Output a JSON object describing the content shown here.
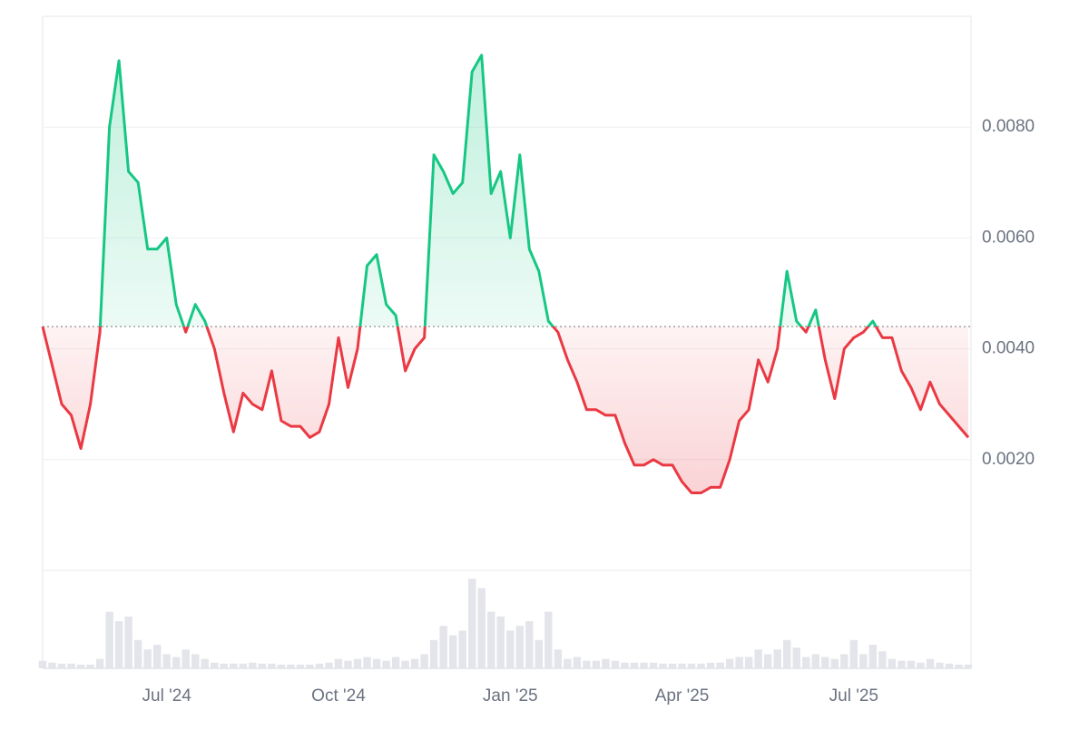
{
  "chart_data": {
    "type": "line",
    "categories": [
      null,
      null,
      null,
      null,
      null,
      null,
      null,
      null,
      null,
      null,
      null,
      null,
      null,
      "Jul '24",
      null,
      null,
      null,
      null,
      null,
      null,
      null,
      null,
      null,
      null,
      null,
      null,
      null,
      null,
      null,
      null,
      null,
      "Oct '24",
      null,
      null,
      null,
      null,
      null,
      null,
      null,
      null,
      null,
      null,
      null,
      null,
      null,
      null,
      null,
      null,
      null,
      "Jan '25",
      null,
      null,
      null,
      null,
      null,
      null,
      null,
      null,
      null,
      null,
      null,
      null,
      null,
      null,
      null,
      null,
      null,
      "Apr '25",
      null,
      null,
      null,
      null,
      null,
      null,
      null,
      null,
      null,
      null,
      null,
      null,
      null,
      null,
      null,
      null,
      null,
      "Jul '25",
      null,
      null,
      null,
      null,
      null,
      null,
      null,
      null,
      null,
      null,
      null,
      null
    ],
    "values": [
      0.0044,
      0.0037,
      0.003,
      0.0028,
      0.0022,
      0.003,
      0.0043,
      0.008,
      0.0092,
      0.0072,
      0.007,
      0.0058,
      0.0058,
      0.006,
      0.0048,
      0.0043,
      0.0048,
      0.0045,
      0.004,
      0.0032,
      0.0025,
      0.0032,
      0.003,
      0.0029,
      0.0036,
      0.0027,
      0.0026,
      0.0026,
      0.0024,
      0.0025,
      0.003,
      0.0042,
      0.0033,
      0.004,
      0.0055,
      0.0057,
      0.0048,
      0.0046,
      0.0036,
      0.004,
      0.0042,
      0.0075,
      0.0072,
      0.0068,
      0.007,
      0.009,
      0.0093,
      0.0068,
      0.0072,
      0.006,
      0.0075,
      0.0058,
      0.0054,
      0.0045,
      0.0043,
      0.0038,
      0.0034,
      0.0029,
      0.0029,
      0.0028,
      0.0028,
      0.0023,
      0.0019,
      0.0019,
      0.002,
      0.0019,
      0.0019,
      0.0016,
      0.0014,
      0.0014,
      0.0015,
      0.0015,
      0.002,
      0.0027,
      0.0029,
      0.0038,
      0.0034,
      0.004,
      0.0054,
      0.0045,
      0.0043,
      0.0047,
      0.0038,
      0.0031,
      0.004,
      0.0042,
      0.0043,
      0.0045,
      0.0042,
      0.0042,
      0.0036,
      0.0033,
      0.0029,
      0.0034,
      0.003,
      0.0028,
      0.0026,
      0.0024
    ],
    "baseline": 0.0044,
    "colors": {
      "up": "#16c784",
      "down": "#ea3943"
    },
    "ylim": [
      0,
      0.01
    ],
    "yticks": [
      {
        "value": 0.002,
        "label": "0.0020"
      },
      {
        "value": 0.004,
        "label": "0.0040"
      },
      {
        "value": 0.006,
        "label": "0.0060"
      },
      {
        "value": 0.008,
        "label": "0.0080"
      }
    ],
    "grid": true,
    "volume": {
      "color": "#e3e5ea",
      "ylim": [
        0,
        100
      ],
      "values": [
        8,
        6,
        5,
        5,
        4,
        4,
        10,
        60,
        50,
        55,
        30,
        20,
        25,
        15,
        12,
        20,
        15,
        10,
        6,
        5,
        5,
        5,
        6,
        5,
        5,
        4,
        4,
        4,
        4,
        5,
        6,
        10,
        8,
        10,
        12,
        10,
        8,
        12,
        8,
        10,
        15,
        30,
        45,
        35,
        40,
        95,
        85,
        60,
        55,
        40,
        45,
        50,
        30,
        60,
        20,
        10,
        12,
        8,
        8,
        10,
        8,
        6,
        6,
        6,
        6,
        5,
        5,
        5,
        5,
        5,
        6,
        6,
        10,
        12,
        12,
        20,
        15,
        20,
        30,
        22,
        12,
        15,
        12,
        10,
        15,
        30,
        15,
        25,
        18,
        10,
        8,
        8,
        6,
        10,
        6,
        5,
        4,
        4
      ]
    }
  }
}
